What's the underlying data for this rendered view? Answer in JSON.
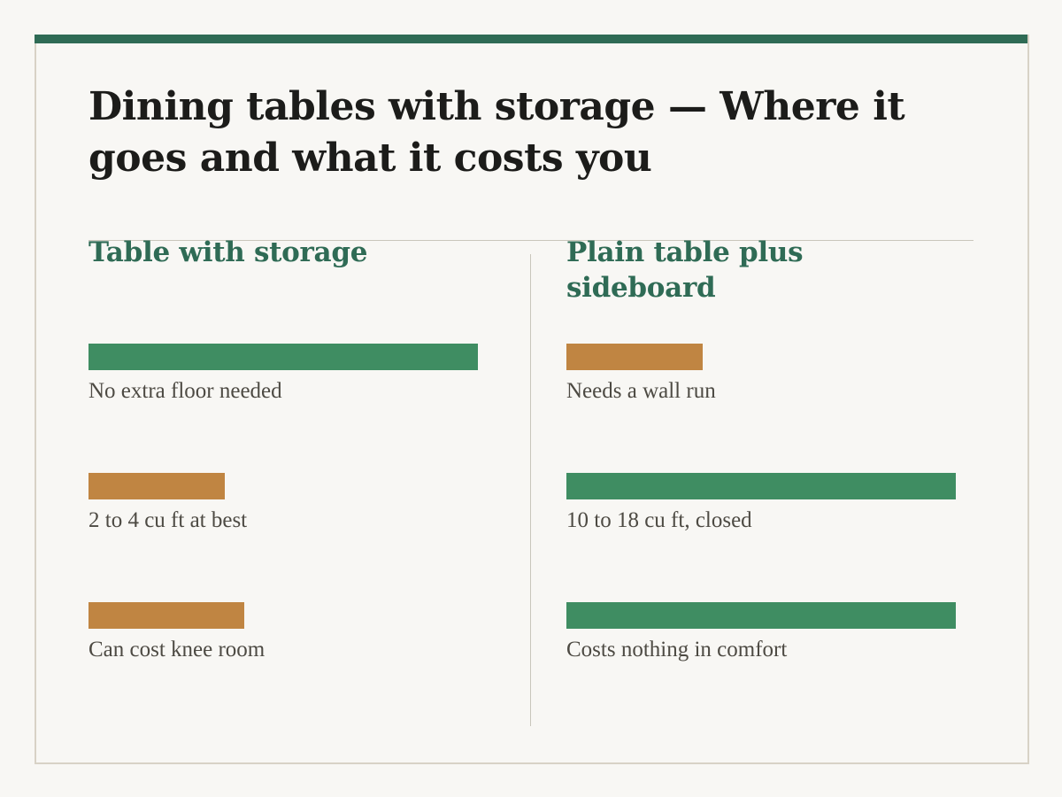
{
  "title": "Dining tables with storage — Where it goes and what it costs you",
  "colors": {
    "accent": "#2f6b55",
    "good": "#3f8d62",
    "weak": "#c08542",
    "heading": "#2f6b55",
    "border": "#d8d2c6"
  },
  "chart_data": {
    "type": "bar",
    "columns": [
      {
        "heading": "Table with storage",
        "rows": [
          {
            "label": "No extra floor needed",
            "value": 1.0,
            "rating": "good"
          },
          {
            "label": "2 to 4 cu ft at best",
            "value": 0.35,
            "rating": "weak"
          },
          {
            "label": "Can cost knee room",
            "value": 0.4,
            "rating": "weak"
          }
        ]
      },
      {
        "heading": "Plain table plus sideboard",
        "rows": [
          {
            "label": "Needs a wall run",
            "value": 0.35,
            "rating": "weak"
          },
          {
            "label": "10 to 18 cu ft, closed",
            "value": 1.0,
            "rating": "good"
          },
          {
            "label": "Costs nothing in comfort",
            "value": 1.0,
            "rating": "good"
          }
        ]
      }
    ]
  }
}
